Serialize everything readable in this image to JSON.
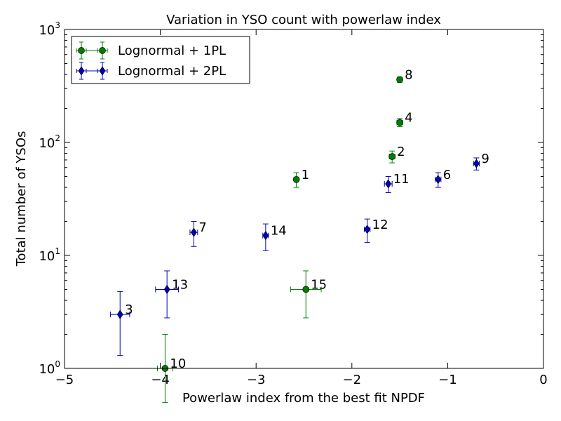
{
  "chart_data": {
    "type": "scatter",
    "title": "Variation in YSO count with powerlaw index",
    "xlabel": "Powerlaw index from the best fit NPDF",
    "ylabel": "Total number of YSOs",
    "xlim": [
      -5,
      0
    ],
    "ylim": [
      1,
      1000
    ],
    "yscale": "log",
    "grid": false,
    "legend_position": "top-left",
    "x_ticks": [
      {
        "value": -5,
        "label": "−5"
      },
      {
        "value": -4,
        "label": "−4"
      },
      {
        "value": -3,
        "label": "−3"
      },
      {
        "value": -2,
        "label": "−2"
      },
      {
        "value": -1,
        "label": "−1"
      },
      {
        "value": 0,
        "label": "0"
      }
    ],
    "y_ticks": [
      {
        "value": 1,
        "base": "10",
        "exp": "0"
      },
      {
        "value": 10,
        "base": "10",
        "exp": "1"
      },
      {
        "value": 100,
        "base": "10",
        "exp": "2"
      },
      {
        "value": 1000,
        "base": "10",
        "exp": "3"
      }
    ],
    "series": [
      {
        "name": "Lognormal + 1PL",
        "color": "#007f00",
        "marker": "circle",
        "points": [
          {
            "label": "1",
            "x": -2.58,
            "y": 47,
            "xerr": 0.02,
            "ylo": 40,
            "yhi": 54
          },
          {
            "label": "2",
            "x": -1.58,
            "y": 75,
            "xerr": 0.03,
            "ylo": 66,
            "yhi": 84
          },
          {
            "label": "4",
            "x": -1.5,
            "y": 150,
            "xerr": 0.03,
            "ylo": 138,
            "yhi": 163
          },
          {
            "label": "8",
            "x": -1.5,
            "y": 360,
            "xerr": 0.02,
            "ylo": 341,
            "yhi": 379
          },
          {
            "label": "10",
            "x": -3.95,
            "y": 1,
            "xerr": 0.08,
            "ylo": 0.5,
            "yhi": 2.0
          },
          {
            "label": "15",
            "x": -2.48,
            "y": 5,
            "xerr": 0.16,
            "ylo": 2.8,
            "yhi": 7.3
          }
        ]
      },
      {
        "name": "Lognormal + 2PL",
        "color": "#0000bf",
        "marker": "diamond",
        "points": [
          {
            "label": "3",
            "x": -4.42,
            "y": 3,
            "xerr": 0.1,
            "ylo": 1.3,
            "yhi": 4.8
          },
          {
            "label": "6",
            "x": -1.1,
            "y": 47,
            "xerr": 0.03,
            "ylo": 40,
            "yhi": 54
          },
          {
            "label": "7",
            "x": -3.65,
            "y": 16,
            "xerr": 0.04,
            "ylo": 12,
            "yhi": 20
          },
          {
            "label": "9",
            "x": -0.7,
            "y": 65,
            "xerr": 0.03,
            "ylo": 57,
            "yhi": 73
          },
          {
            "label": "11",
            "x": -1.62,
            "y": 43,
            "xerr": 0.04,
            "ylo": 36,
            "yhi": 50
          },
          {
            "label": "12",
            "x": -1.84,
            "y": 17,
            "xerr": 0.03,
            "ylo": 13,
            "yhi": 21
          },
          {
            "label": "13",
            "x": -3.93,
            "y": 5,
            "xerr": 0.12,
            "ylo": 2.8,
            "yhi": 7.3
          },
          {
            "label": "14",
            "x": -2.9,
            "y": 15,
            "xerr": 0.03,
            "ylo": 11,
            "yhi": 19
          }
        ]
      }
    ]
  }
}
